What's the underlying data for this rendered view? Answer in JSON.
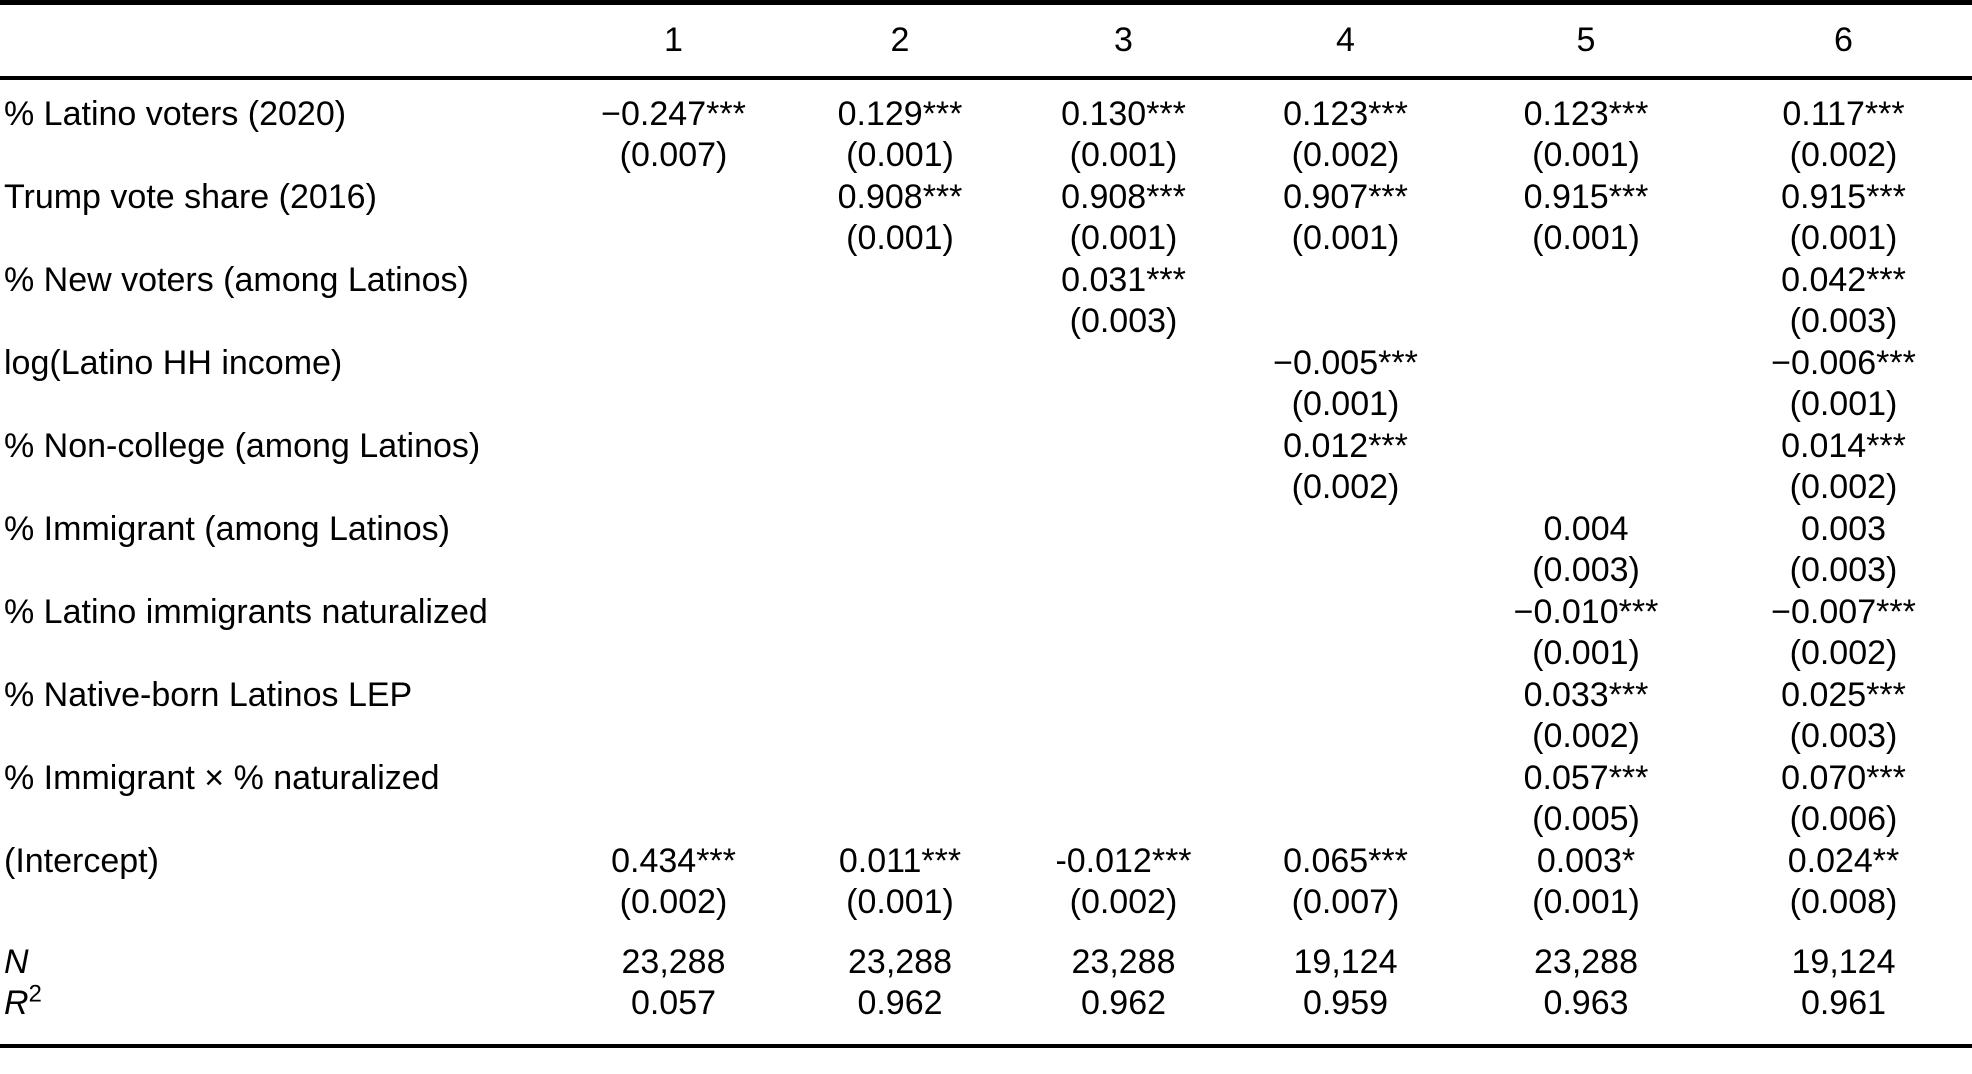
{
  "colors": {
    "background": "#ffffff",
    "text": "#000000",
    "rule": "#000000"
  },
  "table": {
    "columns": [
      "1",
      "2",
      "3",
      "4",
      "5",
      "6"
    ],
    "rows": [
      {
        "label": "% Latino voters (2020)",
        "coef": [
          "−0.247***",
          "0.129***",
          "0.130***",
          "0.123***",
          "0.123***",
          "0.117***"
        ],
        "se": [
          "(0.007)",
          "(0.001)",
          "(0.001)",
          "(0.002)",
          "(0.001)",
          "(0.002)"
        ]
      },
      {
        "label": "Trump vote share (2016)",
        "coef": [
          "",
          "0.908***",
          "0.908***",
          "0.907***",
          "0.915***",
          "0.915***"
        ],
        "se": [
          "",
          "(0.001)",
          "(0.001)",
          "(0.001)",
          "(0.001)",
          "(0.001)"
        ]
      },
      {
        "label": "% New voters (among Latinos)",
        "coef": [
          "",
          "",
          "0.031***",
          "",
          "",
          "0.042***"
        ],
        "se": [
          "",
          "",
          "(0.003)",
          "",
          "",
          "(0.003)"
        ]
      },
      {
        "label": "log(Latino HH income)",
        "coef": [
          "",
          "",
          "",
          "−0.005***",
          "",
          "−0.006***"
        ],
        "se": [
          "",
          "",
          "",
          "(0.001)",
          "",
          "(0.001)"
        ]
      },
      {
        "label": "% Non-college (among Latinos)",
        "coef": [
          "",
          "",
          "",
          "0.012***",
          "",
          "0.014***"
        ],
        "se": [
          "",
          "",
          "",
          "(0.002)",
          "",
          "(0.002)"
        ]
      },
      {
        "label": "% Immigrant (among Latinos)",
        "coef": [
          "",
          "",
          "",
          "",
          "0.004",
          "0.003"
        ],
        "se": [
          "",
          "",
          "",
          "",
          "(0.003)",
          "(0.003)"
        ]
      },
      {
        "label": "% Latino immigrants naturalized",
        "coef": [
          "",
          "",
          "",
          "",
          "−0.010***",
          "−0.007***"
        ],
        "se": [
          "",
          "",
          "",
          "",
          "(0.001)",
          "(0.002)"
        ]
      },
      {
        "label": "% Native-born Latinos LEP",
        "coef": [
          "",
          "",
          "",
          "",
          "0.033***",
          "0.025***"
        ],
        "se": [
          "",
          "",
          "",
          "",
          "(0.002)",
          "(0.003)"
        ]
      },
      {
        "label": "% Immigrant × % naturalized",
        "coef": [
          "",
          "",
          "",
          "",
          "0.057***",
          "0.070***"
        ],
        "se": [
          "",
          "",
          "",
          "",
          "(0.005)",
          "(0.006)"
        ]
      },
      {
        "label": "(Intercept)",
        "coef": [
          "0.434***",
          "0.011***",
          "-0.012***",
          "0.065***",
          "0.003*",
          "0.024**"
        ],
        "se": [
          "(0.002)",
          "(0.001)",
          "(0.002)",
          "(0.007)",
          "(0.001)",
          "(0.008)"
        ]
      }
    ],
    "stats": [
      {
        "base": "N",
        "sup": "",
        "values": [
          "23,288",
          "23,288",
          "23,288",
          "19,124",
          "23,288",
          "19,124"
        ]
      },
      {
        "base": "R",
        "sup": "2",
        "values": [
          "0.057",
          "0.962",
          "0.962",
          "0.959",
          "0.963",
          "0.961"
        ]
      }
    ]
  }
}
